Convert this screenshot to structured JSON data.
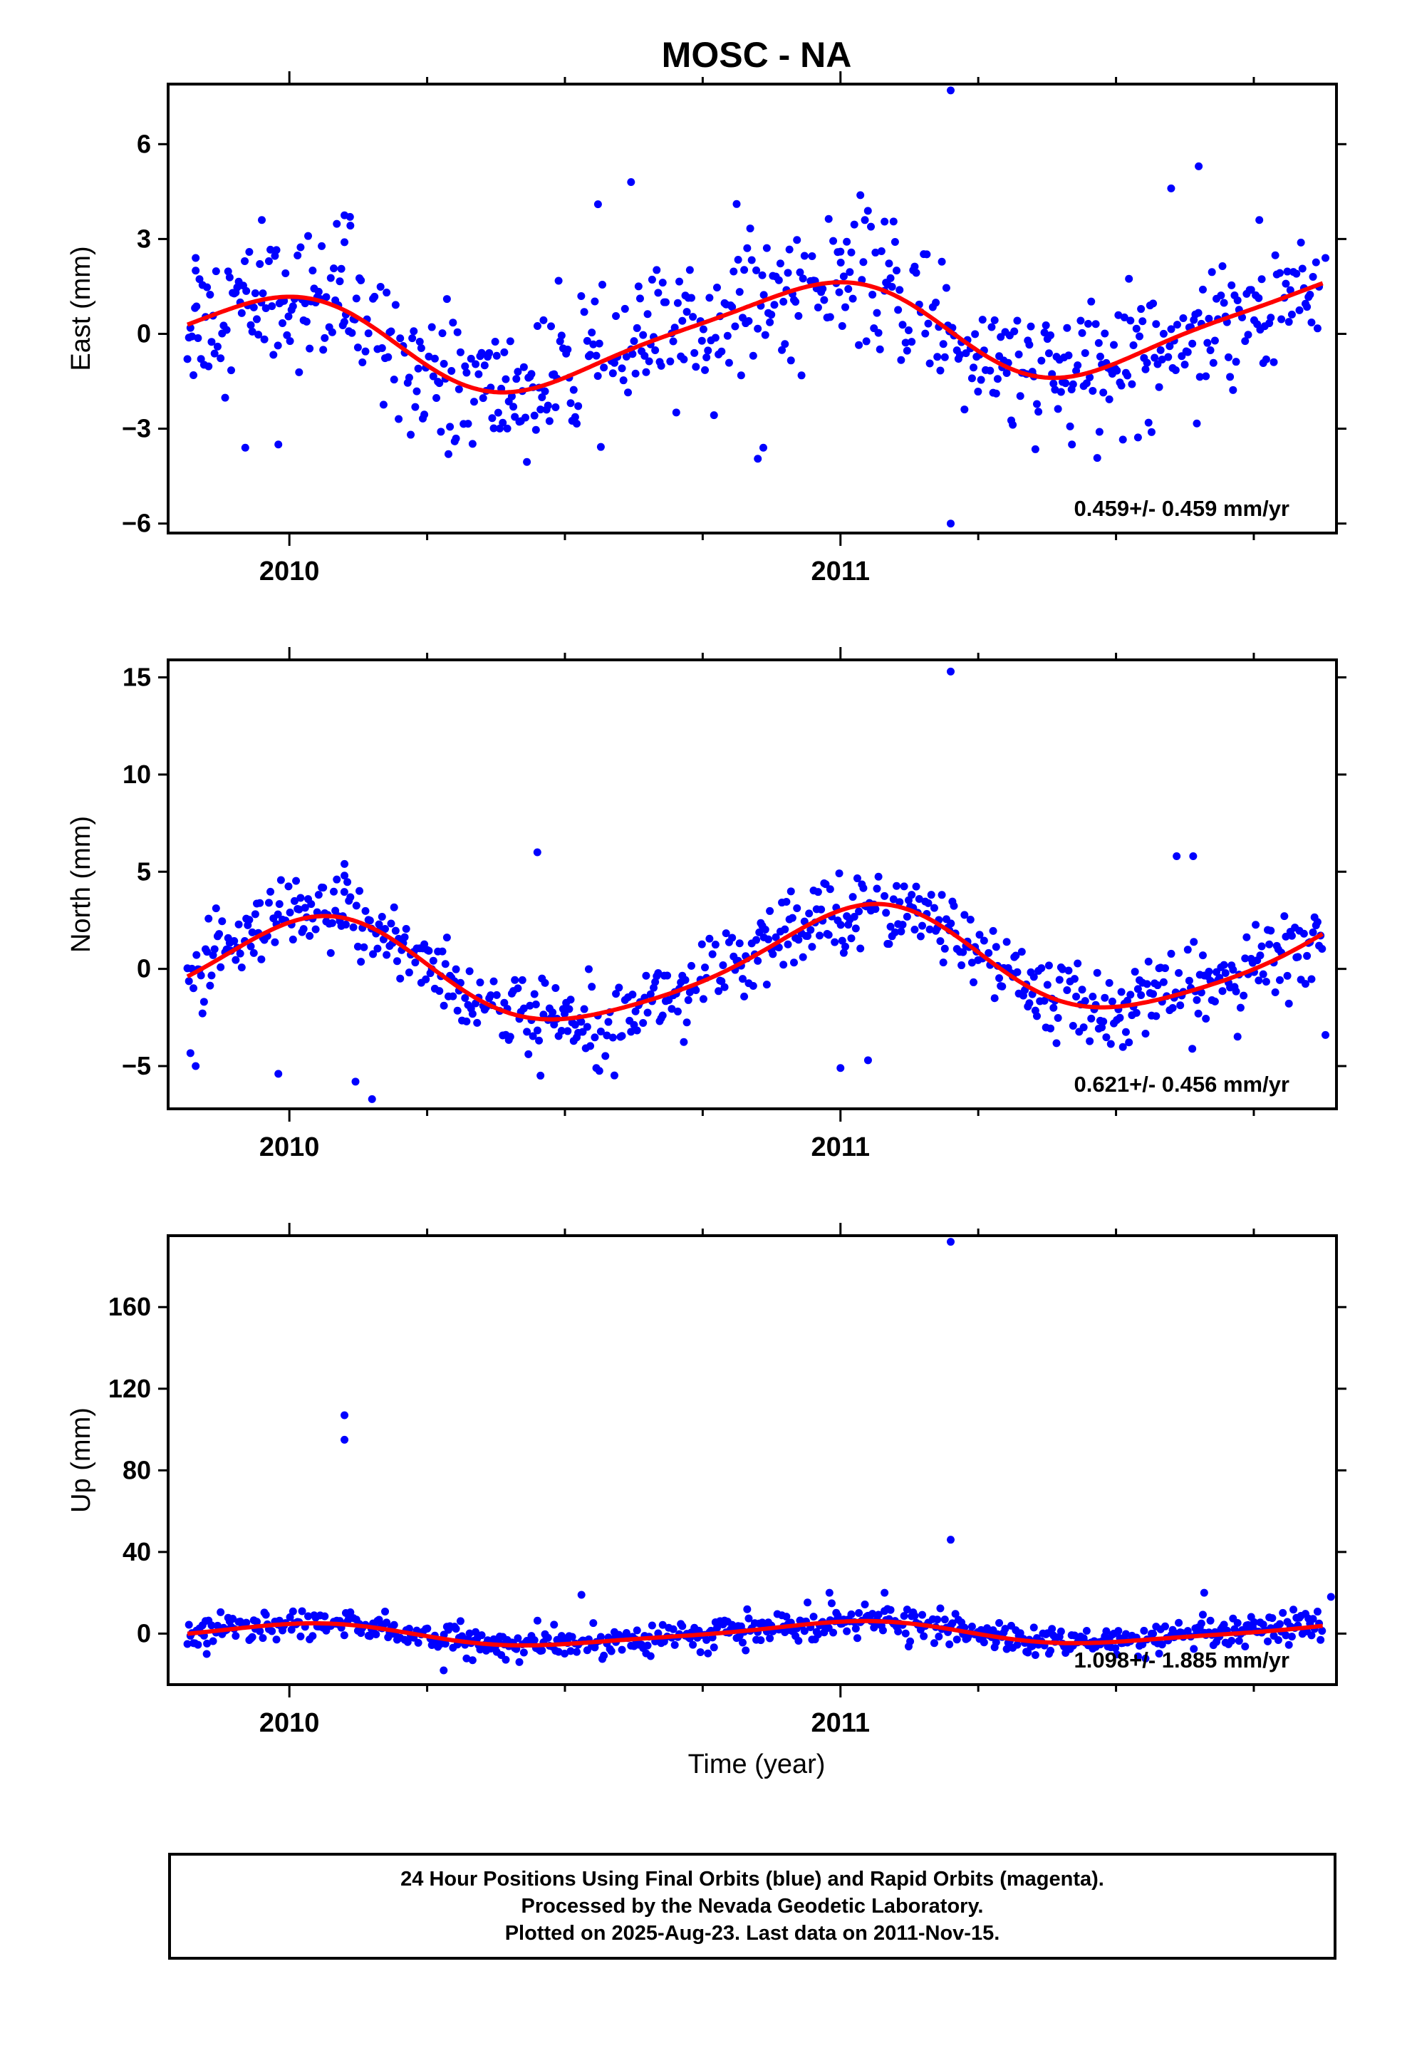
{
  "title": "MOSC - NA",
  "xlabel": "Time (year)",
  "footer": {
    "line1": "24 Hour Positions Using Final Orbits (blue) and Rapid Orbits (magenta).",
    "line2": "Processed by the Nevada Geodetic Laboratory.",
    "line3": "Plotted on 2025-Aug-23. Last data on 2011-Nov-15."
  },
  "colors": {
    "points": "#0000ff",
    "fit": "#ff0000",
    "axes": "#000000"
  },
  "chart_data": [
    {
      "type": "scatter",
      "name": "east",
      "ylabel": "East (mm)",
      "xlim": [
        2009.78,
        2011.9
      ],
      "ylim": [
        -6.3,
        7.9
      ],
      "yticks": [
        -6,
        -3,
        0,
        3,
        6
      ],
      "xticks": [
        2010,
        2011
      ],
      "rate_label": "0.459+/- 0.459 mm/yr",
      "fit": {
        "mean": 0.0,
        "trend": 0.459,
        "t0": 2010.85,
        "a1": 1.5,
        "phi1": 1.95,
        "a2": 0.3,
        "phi2": 0.6
      },
      "noise": 1.05,
      "outliers": [
        [
          2009.83,
          2.4
        ],
        [
          2009.83,
          2.0
        ],
        [
          2009.95,
          3.6
        ],
        [
          2010.1,
          3.75
        ],
        [
          2010.11,
          3.7
        ],
        [
          2010.1,
          2.9
        ],
        [
          2010.62,
          4.8
        ],
        [
          2010.56,
          4.1
        ],
        [
          2011.0,
          2.6
        ],
        [
          2011.08,
          3.55
        ],
        [
          2011.2,
          7.7
        ],
        [
          2011.2,
          -6.0
        ],
        [
          2011.42,
          -3.5
        ],
        [
          2011.47,
          -3.1
        ],
        [
          2011.65,
          5.3
        ],
        [
          2011.6,
          4.6
        ],
        [
          2011.76,
          3.6
        ],
        [
          2011.88,
          2.4
        ],
        [
          2010.85,
          -3.95
        ],
        [
          2010.86,
          -3.6
        ],
        [
          2010.3,
          -3.4
        ],
        [
          2009.92,
          -3.6
        ],
        [
          2009.98,
          -3.5
        ]
      ]
    },
    {
      "type": "scatter",
      "name": "north",
      "ylabel": "North (mm)",
      "xlim": [
        2009.78,
        2011.9
      ],
      "ylim": [
        -7.2,
        15.9
      ],
      "yticks": [
        -5,
        0,
        5,
        10,
        15
      ],
      "xticks": [
        2010,
        2011
      ],
      "rate_label": "0.621+/- 0.456 mm/yr",
      "fit": {
        "mean": 0.15,
        "trend": 0.621,
        "t0": 2010.85,
        "a1": 2.7,
        "phi1": 1.35,
        "a2": 0.45,
        "phi2": 0.3
      },
      "noise": 1.0,
      "outliers": [
        [
          2010.1,
          5.4
        ],
        [
          2010.1,
          4.8
        ],
        [
          2010.12,
          -5.8
        ],
        [
          2010.15,
          -6.7
        ],
        [
          2009.83,
          -5.0
        ],
        [
          2009.98,
          -5.4
        ],
        [
          2010.45,
          6.0
        ],
        [
          2011.2,
          15.3
        ],
        [
          2011.61,
          5.8
        ],
        [
          2011.64,
          5.8
        ],
        [
          2011.0,
          -5.1
        ],
        [
          2011.05,
          -4.7
        ],
        [
          2011.88,
          -3.4
        ]
      ]
    },
    {
      "type": "scatter",
      "name": "up",
      "ylabel": "Up (mm)",
      "xlim": [
        2009.78,
        2011.9
      ],
      "ylim": [
        -25,
        195
      ],
      "yticks": [
        0,
        40,
        80,
        120,
        160
      ],
      "xticks": [
        2010,
        2011
      ],
      "rate_label": "1.098+/- 1.885 mm/yr",
      "fit": {
        "mean": 0.0,
        "trend": 1.098,
        "t0": 2010.85,
        "a1": 5.2,
        "phi1": 1.6,
        "a2": 1.2,
        "phi2": 0.4
      },
      "noise": 3.6,
      "outliers": [
        [
          2010.1,
          107
        ],
        [
          2010.1,
          95
        ],
        [
          2011.2,
          192
        ],
        [
          2011.2,
          46
        ],
        [
          2010.53,
          19
        ],
        [
          2010.98,
          20
        ],
        [
          2011.08,
          20
        ],
        [
          2011.89,
          18
        ],
        [
          2011.66,
          20
        ],
        [
          2010.28,
          -18
        ],
        [
          2009.85,
          -10
        ]
      ]
    }
  ]
}
